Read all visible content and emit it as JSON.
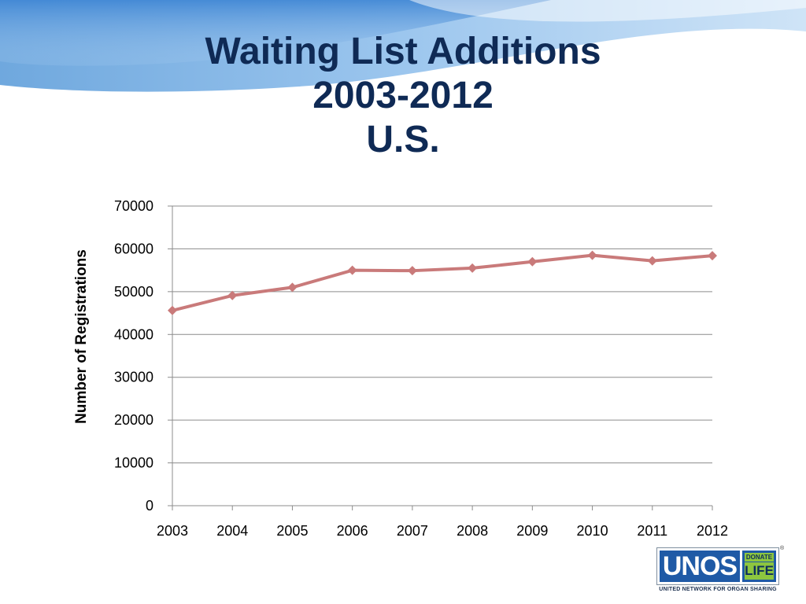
{
  "slide": {
    "title_lines": [
      "Waiting List Additions",
      "2003-2012",
      "U.S."
    ]
  },
  "chart_data": {
    "type": "line",
    "title": "",
    "xlabel": "",
    "ylabel": "Number of Registrations",
    "categories": [
      "2003",
      "2004",
      "2005",
      "2006",
      "2007",
      "2008",
      "2009",
      "2010",
      "2011",
      "2012"
    ],
    "series": [
      {
        "values": [
          45600,
          49100,
          51000,
          55000,
          54900,
          55500,
          57000,
          58500,
          57200,
          58400
        ],
        "color": "#c97a7a"
      }
    ],
    "ylim": [
      0,
      70000
    ],
    "yticks": [
      "0",
      "10000",
      "20000",
      "30000",
      "40000",
      "50000",
      "60000",
      "70000"
    ],
    "grid": true,
    "legend": "none"
  },
  "logo": {
    "name": "UNOS",
    "badge_top": "DONATE",
    "badge_bottom": "LIFE",
    "tagline": "UNITED NETWORK FOR ORGAN SHARING",
    "registered_mark": "®"
  }
}
